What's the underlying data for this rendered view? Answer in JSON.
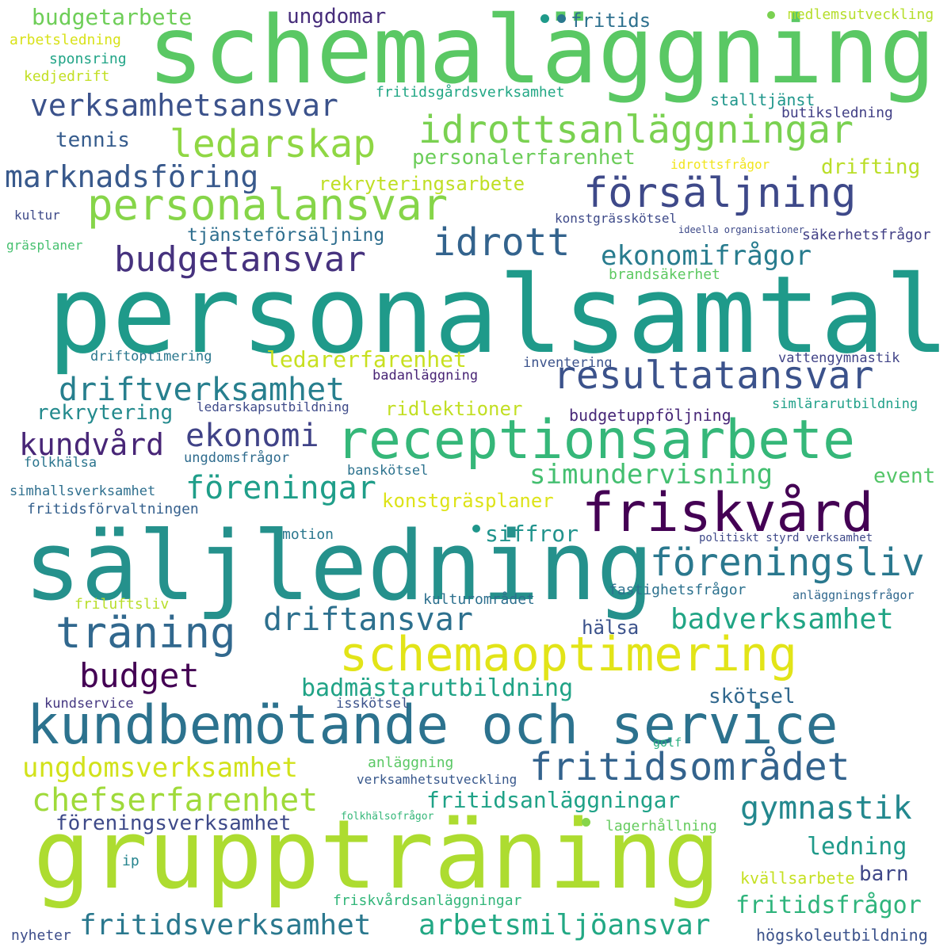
{
  "words": [
    {
      "text": "schemaläggning",
      "color": "#5ac864"
    },
    {
      "text": "personalsamtal",
      "color": "#1f9a8a"
    },
    {
      "text": "säljledning",
      "color": "#25918c"
    },
    {
      "text": "gruppträning",
      "color": "#addc30"
    },
    {
      "text": "receptionsarbete",
      "color": "#35b779"
    },
    {
      "text": "kundbemötande och service",
      "color": "#2c728e"
    },
    {
      "text": "schemaoptimering",
      "color": "#e2e418"
    },
    {
      "text": "friskvård",
      "color": "#440154"
    },
    {
      "text": "träning",
      "color": "#31688e"
    },
    {
      "text": "personalansvar",
      "color": "#86d549"
    },
    {
      "text": "försäljning",
      "color": "#3e4989"
    },
    {
      "text": "idrottsanläggningar",
      "color": "#7ad151"
    },
    {
      "text": "ledarskap",
      "color": "#8fd744"
    },
    {
      "text": "resultatansvar",
      "color": "#3b528b"
    },
    {
      "text": "fritidsområdet",
      "color": "#33638d"
    },
    {
      "text": "föreningsliv",
      "color": "#2a788e"
    },
    {
      "text": "idrott",
      "color": "#33638d"
    },
    {
      "text": "budgetansvar",
      "color": "#46327e"
    },
    {
      "text": "verksamhetsansvar",
      "color": "#3b528b"
    },
    {
      "text": "marknadsföring",
      "color": "#38598c"
    },
    {
      "text": "driftverksamhet",
      "color": "#277f8e"
    },
    {
      "text": "ekonomi",
      "color": "#404387"
    },
    {
      "text": "kundvård",
      "color": "#482677"
    },
    {
      "text": "föreningar",
      "color": "#1f9e89"
    },
    {
      "text": "driftansvar",
      "color": "#2d708e"
    },
    {
      "text": "budget",
      "color": "#440154"
    },
    {
      "text": "chefserfarenhet",
      "color": "#9fda3a"
    },
    {
      "text": "ungdomsverksamhet",
      "color": "#d2e21b"
    },
    {
      "text": "gymnastik",
      "color": "#23888e"
    },
    {
      "text": "badverksamhet",
      "color": "#21a585"
    },
    {
      "text": "fritidsverksamhet",
      "color": "#2a788e"
    },
    {
      "text": "arbetsmiljöansvar",
      "color": "#22a884"
    },
    {
      "text": "ekonomifrågor",
      "color": "#287c8e"
    },
    {
      "text": "simundervisning",
      "color": "#44bf70"
    },
    {
      "text": "fritidsanläggningar",
      "color": "#1fa287"
    },
    {
      "text": "föreningsverksamhet",
      "color": "#3e4a89"
    },
    {
      "text": "fritidsfrågor",
      "color": "#2fb47c"
    },
    {
      "text": "badmästarutbildning",
      "color": "#20a386"
    },
    {
      "text": "ledning",
      "color": "#1f9a8a"
    },
    {
      "text": "tjänsteförsäljning",
      "color": "#2e6e8e"
    },
    {
      "text": "rekryteringsarbete",
      "color": "#c0df25"
    },
    {
      "text": "personalerfarenhet",
      "color": "#6ccd5a"
    },
    {
      "text": "rekrytering",
      "color": "#238a8d"
    },
    {
      "text": "ledarerfarenhet",
      "color": "#c8e020"
    },
    {
      "text": "budgetarbete",
      "color": "#6ece58"
    },
    {
      "text": "ungdomar",
      "color": "#472d7b"
    },
    {
      "text": "tennis",
      "color": "#365c8d"
    },
    {
      "text": "konstgräsplaner",
      "color": "#dde318"
    },
    {
      "text": "ridlektioner",
      "color": "#c2df23"
    },
    {
      "text": "siffror",
      "color": "#20938c"
    },
    {
      "text": "event",
      "color": "#54c568"
    },
    {
      "text": "drifting",
      "color": "#bade28"
    },
    {
      "text": "fritids",
      "color": "#2d708e"
    },
    {
      "text": "skötsel",
      "color": "#31688e"
    },
    {
      "text": "barn",
      "color": "#3f4788"
    },
    {
      "text": "hälsa",
      "color": "#3b528b"
    },
    {
      "text": "budgetuppföljning",
      "color": "#482878"
    },
    {
      "text": "fastighetsfrågor",
      "color": "#2c718e"
    },
    {
      "text": "brandsäkerhet",
      "color": "#5ec962"
    },
    {
      "text": "stalltjänst",
      "color": "#1f968b"
    },
    {
      "text": "kvällsarbete",
      "color": "#c5e021"
    },
    {
      "text": "högskoleutbildning",
      "color": "#3b528b"
    },
    {
      "text": "kulturområdet",
      "color": "#2d708e"
    },
    {
      "text": "friluftsliv",
      "color": "#b8de29"
    },
    {
      "text": "konstgrässkötsel",
      "color": "#3e4a89"
    },
    {
      "text": "säkerhetsfrågor",
      "color": "#424086"
    },
    {
      "text": "fritidsgårdsverksamhet",
      "color": "#22a785"
    },
    {
      "text": "lagerhållning",
      "color": "#65cb5e"
    },
    {
      "text": "medlemsutveckling",
      "color": "#b5de2b"
    },
    {
      "text": "arbetsledning",
      "color": "#d8e219"
    },
    {
      "text": "sponsring",
      "color": "#20a486"
    },
    {
      "text": "kedjedrift",
      "color": "#c2df23"
    },
    {
      "text": "butiksledning",
      "color": "#424086"
    },
    {
      "text": "idrottsfrågor",
      "color": "#f1e51d"
    },
    {
      "text": "kultur",
      "color": "#3e4a89"
    },
    {
      "text": "gräsplaner",
      "color": "#46c06f"
    },
    {
      "text": "ideella organisationer",
      "color": "#3e4a89"
    },
    {
      "text": "driftoptimering",
      "color": "#2a778e"
    },
    {
      "text": "inventering",
      "color": "#3b528b"
    },
    {
      "text": "vattengymnastik",
      "color": "#404387"
    },
    {
      "text": "badanläggning",
      "color": "#482475"
    },
    {
      "text": "ledarskapsutbildning",
      "color": "#3e4a89"
    },
    {
      "text": "simlärarutbildning",
      "color": "#1fa088"
    },
    {
      "text": "folkhälsa",
      "color": "#2b758e"
    },
    {
      "text": "ungdomsfrågor",
      "color": "#2f6c8e"
    },
    {
      "text": "banskötsel",
      "color": "#2c728e"
    },
    {
      "text": "simhallsverksamhet",
      "color": "#2e6f8e"
    },
    {
      "text": "fritidsförvaltningen",
      "color": "#35608d"
    },
    {
      "text": "motion",
      "color": "#2a778e"
    },
    {
      "text": "politiskt styrd verksamhet",
      "color": "#3e4989"
    },
    {
      "text": "anläggningsfrågor",
      "color": "#31688e"
    },
    {
      "text": "kundservice",
      "color": "#453781"
    },
    {
      "text": "isskötsel",
      "color": "#3b528b"
    },
    {
      "text": "golf",
      "color": "#29af7f"
    },
    {
      "text": "anläggning",
      "color": "#5ac864"
    },
    {
      "text": "verksamhetsutveckling",
      "color": "#38588c"
    },
    {
      "text": "folkhälsofrågor",
      "color": "#35b779"
    },
    {
      "text": "ip",
      "color": "#25848e"
    },
    {
      "text": "friskvårdsanläggningar",
      "color": "#32b67a"
    },
    {
      "text": "nyheter",
      "color": "#3d4d8a"
    }
  ],
  "dot_colors": [
    "#1f9a8a",
    "#2a788e",
    "#7ad151",
    "#1f968b",
    "#86d549"
  ]
}
